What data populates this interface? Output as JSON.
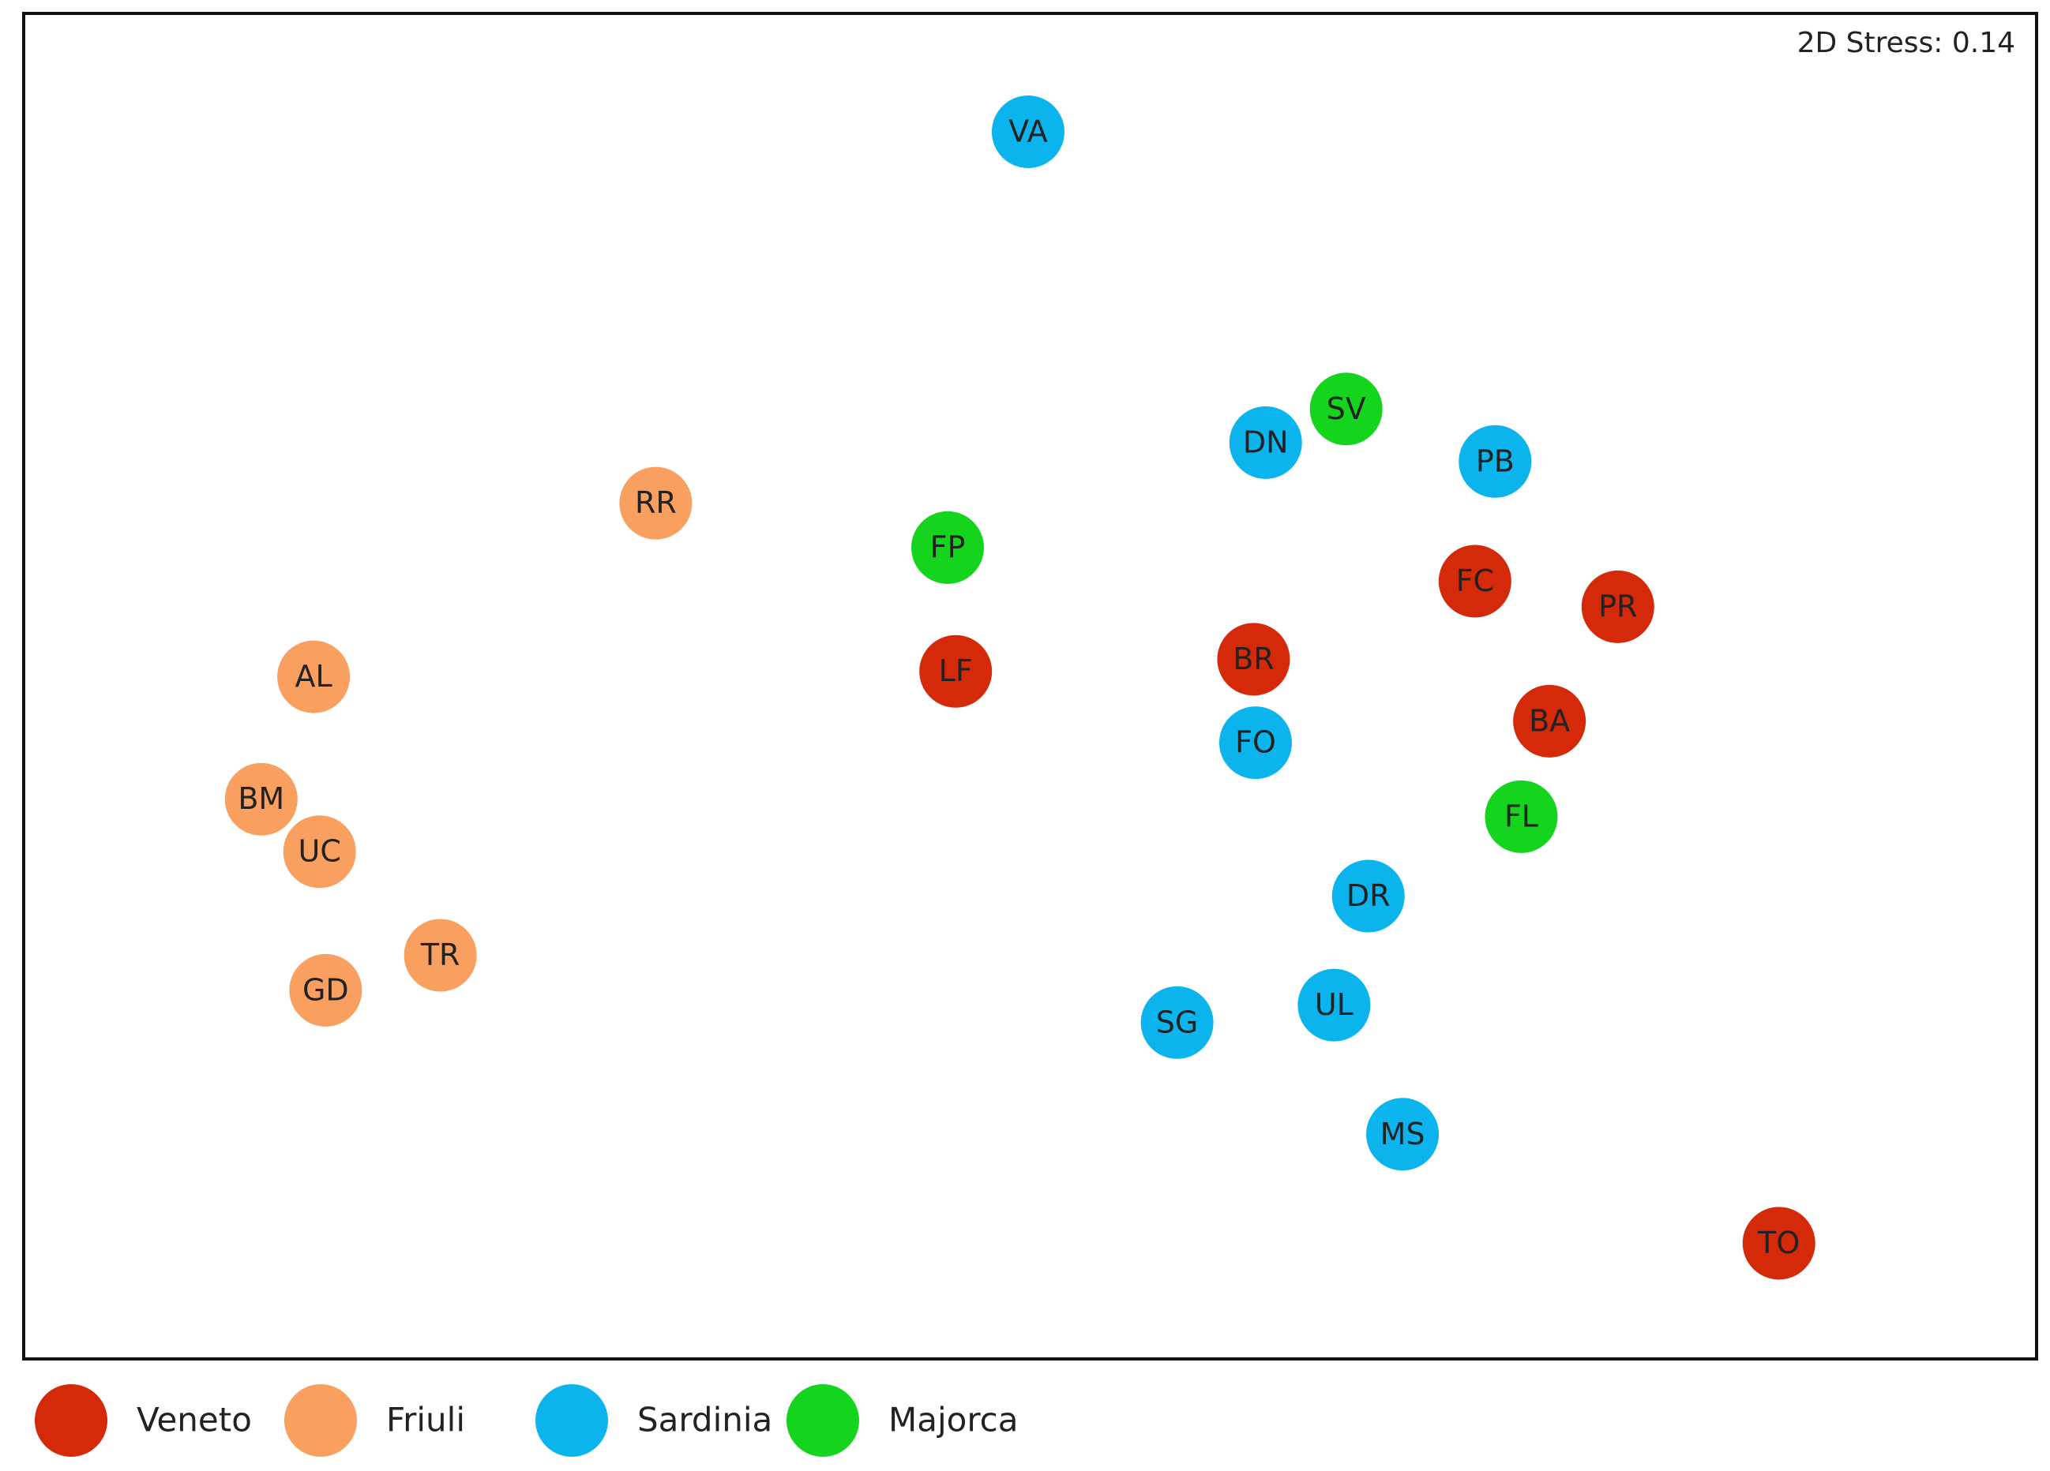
{
  "chart_data": {
    "type": "scatter",
    "annotation": "2D Stress: 0.14",
    "xlim": [
      0,
      100
    ],
    "ylim": [
      0,
      100
    ],
    "series": [
      {
        "name": "Veneto",
        "color": "#d42a0a",
        "labels": [
          "FC",
          "PR",
          "BR",
          "LF",
          "BA",
          "TO"
        ],
        "x": [
          72.1,
          79.2,
          61.1,
          46.3,
          75.8,
          87.2
        ],
        "y": [
          57.8,
          55.9,
          52.0,
          51.1,
          47.4,
          8.6
        ]
      },
      {
        "name": "Friuli",
        "color": "#f9a061",
        "labels": [
          "RR",
          "AL",
          "BM",
          "UC",
          "TR",
          "GD"
        ],
        "x": [
          31.4,
          14.4,
          11.8,
          14.7,
          20.7,
          15.0
        ],
        "y": [
          63.6,
          50.7,
          41.6,
          37.7,
          30.0,
          27.4
        ]
      },
      {
        "name": "Sardinia",
        "color": "#0bb4ec",
        "labels": [
          "VA",
          "DN",
          "PB",
          "FO",
          "DR",
          "UL",
          "SG",
          "MS"
        ],
        "x": [
          49.9,
          61.7,
          73.1,
          61.2,
          66.8,
          65.1,
          57.3,
          68.5
        ],
        "y": [
          91.2,
          68.1,
          66.7,
          45.8,
          34.4,
          26.3,
          25.0,
          16.7
        ]
      },
      {
        "name": "Majorca",
        "color": "#14d41e",
        "labels": [
          "SV",
          "FP",
          "FL"
        ],
        "x": [
          65.7,
          45.9,
          74.4
        ],
        "y": [
          70.6,
          60.3,
          40.3
        ]
      }
    ]
  }
}
